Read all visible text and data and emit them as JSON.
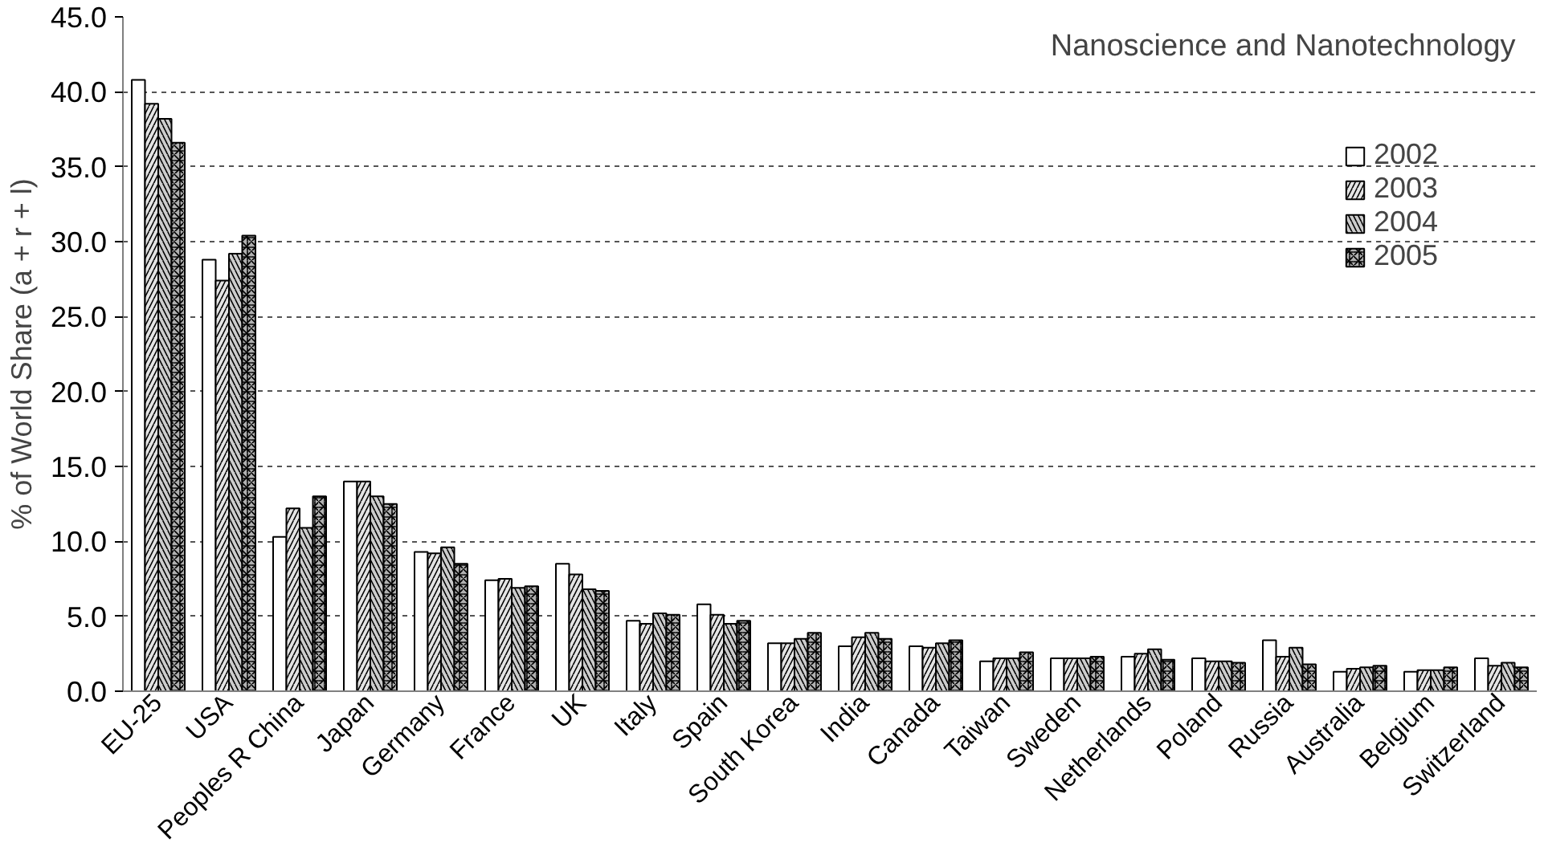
{
  "chart_data": {
    "type": "bar",
    "title": "Nanoscience and Nanotechnology",
    "ylabel": "% of World Share (a + r + l)",
    "categories": [
      "EU-25",
      "USA",
      "Peoples R China",
      "Japan",
      "Germany",
      "France",
      "UK",
      "Italy",
      "Spain",
      "South Korea",
      "India",
      "Canada",
      "Taiwan",
      "Sweden",
      "Netherlands",
      "Poland",
      "Russia",
      "Australia",
      "Belgium",
      "Switzerland"
    ],
    "series": [
      {
        "name": "2002",
        "color": "#ffffff",
        "values": [
          40.8,
          28.8,
          10.3,
          14.0,
          9.3,
          7.4,
          8.5,
          4.7,
          5.8,
          3.2,
          3.0,
          3.0,
          2.0,
          2.2,
          2.3,
          2.2,
          3.4,
          1.3,
          1.3,
          2.2
        ]
      },
      {
        "name": "2003",
        "color": "#e4e4e4",
        "values": [
          39.2,
          27.4,
          12.2,
          14.0,
          9.2,
          7.5,
          7.8,
          4.5,
          5.1,
          3.2,
          3.6,
          2.9,
          2.2,
          2.2,
          2.5,
          2.0,
          2.3,
          1.5,
          1.4,
          1.7
        ]
      },
      {
        "name": "2004",
        "color": "#cccccc",
        "values": [
          38.2,
          29.2,
          10.9,
          13.0,
          9.6,
          6.9,
          6.8,
          5.2,
          4.5,
          3.5,
          3.9,
          3.2,
          2.2,
          2.2,
          2.8,
          2.0,
          2.9,
          1.6,
          1.4,
          1.9
        ]
      },
      {
        "name": "2005",
        "color": "#b0b0b0",
        "values": [
          36.6,
          30.4,
          13.0,
          12.5,
          8.5,
          7.0,
          6.7,
          5.1,
          4.7,
          3.9,
          3.5,
          3.4,
          2.6,
          2.3,
          2.1,
          1.9,
          1.8,
          1.7,
          1.6,
          1.6
        ]
      }
    ],
    "ylim": [
      0,
      45
    ],
    "yticks": [
      {
        "value": 0,
        "label": "0.0"
      },
      {
        "value": 5,
        "label": "5.0"
      },
      {
        "value": 10,
        "label": "10.0"
      },
      {
        "value": 15,
        "label": "15.0"
      },
      {
        "value": 20,
        "label": "20.0"
      },
      {
        "value": 25,
        "label": "25.0"
      },
      {
        "value": 30,
        "label": "30.0"
      },
      {
        "value": 35,
        "label": "35.0"
      },
      {
        "value": 40,
        "label": "40.0"
      },
      {
        "value": 45,
        "label": "45.0"
      }
    ],
    "grid": "y",
    "legend": "right"
  }
}
